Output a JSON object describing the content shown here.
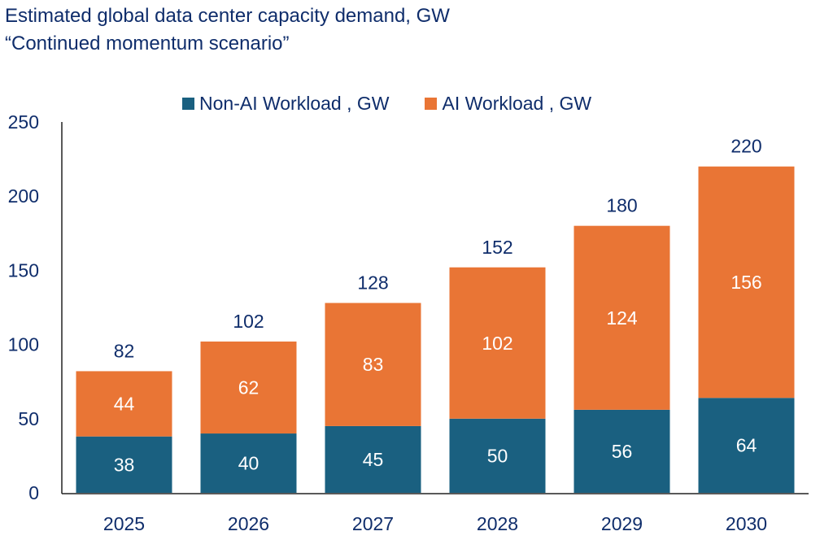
{
  "chart_data": {
    "type": "bar",
    "stacked": true,
    "title": "Estimated global data center capacity demand, GW",
    "subtitle": "“Continued momentum scenario”",
    "xlabel": "",
    "ylabel": "",
    "categories": [
      "2025",
      "2026",
      "2027",
      "2028",
      "2029",
      "2030"
    ],
    "series": [
      {
        "name": "Non-AI Workload , GW",
        "color": "#1a6080",
        "values": [
          38,
          40,
          45,
          50,
          56,
          64
        ]
      },
      {
        "name": "AI Workload , GW",
        "color": "#e97535",
        "values": [
          44,
          62,
          83,
          102,
          124,
          156
        ]
      }
    ],
    "totals": [
      82,
      102,
      128,
      152,
      180,
      220
    ],
    "ylim": [
      0,
      250
    ],
    "yticks": [
      0,
      50,
      100,
      150,
      200,
      250
    ],
    "grid": false,
    "legend_position": "top-center"
  }
}
